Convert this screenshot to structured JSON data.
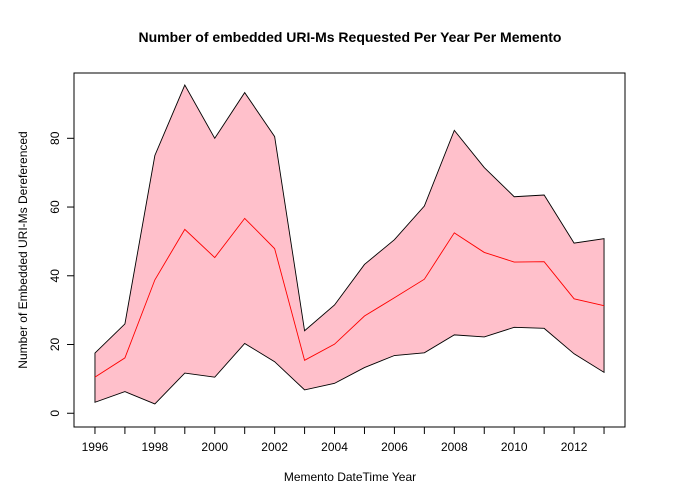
{
  "chart_data": {
    "type": "area",
    "title": "Number of embedded URI-Ms Requested Per Year Per Memento",
    "xlabel": "Memento DateTime Year",
    "ylabel": "Number of Embedded URI-Ms Dereferenced",
    "x": [
      1996,
      1997,
      1998,
      1999,
      2000,
      2001,
      2002,
      2003,
      2004,
      2005,
      2006,
      2007,
      2008,
      2009,
      2010,
      2011,
      2012,
      2013
    ],
    "xlim": [
      1995.3,
      2013.7
    ],
    "ylim": [
      -4,
      99
    ],
    "x_ticks": [
      1996,
      1998,
      2000,
      2002,
      2004,
      2006,
      2008,
      2010,
      2012
    ],
    "y_ticks": [
      0,
      20,
      40,
      60,
      80
    ],
    "grid": false,
    "band": {
      "fill_color": "#ffc0cb",
      "edge_color": "#000000",
      "upper": [
        17.5,
        26,
        75,
        95.5,
        80,
        93.3,
        80.5,
        24,
        31.5,
        43.3,
        50.5,
        60.3,
        82.3,
        71.5,
        63,
        63.5,
        49.5,
        50.8
      ],
      "lower": [
        3.2,
        6.3,
        2.7,
        11.7,
        10.5,
        20.3,
        15,
        6.8,
        8.7,
        13.3,
        16.8,
        17.6,
        22.8,
        22.2,
        25,
        24.7,
        17.3,
        11.9
      ]
    },
    "series": [
      {
        "color": "#ff0000",
        "values": [
          10.5,
          16.1,
          38.8,
          53.5,
          45.3,
          56.7,
          47.9,
          15.4,
          20.1,
          28.3,
          33.6,
          39,
          52.5,
          46.8,
          44,
          44.1,
          33.3,
          31.3
        ]
      }
    ]
  }
}
